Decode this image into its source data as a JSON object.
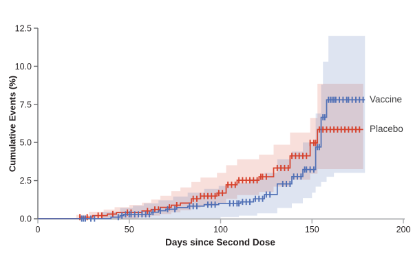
{
  "figure": {
    "background_color": "#ffffff",
    "kind": "Kaplan-Meier cumulative incidence plot"
  },
  "legend": {
    "vaccine_label": "Vaccine",
    "placebo_label": "Placebo"
  },
  "chart_data": {
    "type": "line",
    "subtype": "step-cumulative-incidence-with-confidence-bands",
    "title": "",
    "xlabel": "Days since Second Dose",
    "ylabel": "Cumulative Events (%)",
    "xlim": [
      0,
      200
    ],
    "ylim": [
      0,
      12.5
    ],
    "x_ticks": [
      {
        "v": 0,
        "label": "0"
      },
      {
        "v": 50,
        "label": "50"
      },
      {
        "v": 100,
        "label": "100"
      },
      {
        "v": 150,
        "label": "150"
      },
      {
        "v": 200,
        "label": "200"
      }
    ],
    "y_ticks": [
      {
        "v": 0,
        "label": "0.0"
      },
      {
        "v": 2.5,
        "label": "2.5"
      },
      {
        "v": 5,
        "label": "5.0"
      },
      {
        "v": 7.5,
        "label": "7.5"
      },
      {
        "v": 10,
        "label": "10.0"
      },
      {
        "v": 12.5,
        "label": "12.5"
      }
    ],
    "grid": false,
    "legend_position": "right-of-curve-ends",
    "axis_colors": {
      "x_axis": "#a8aaad",
      "y_axis": "#6d6e71"
    },
    "series": [
      {
        "name": "Placebo",
        "color": "#d6402b",
        "band_fill": "rgba(214,64,43,0.17)",
        "end_day": 178,
        "final_value_pct": 5.85,
        "steps": [
          [
            0,
            0
          ],
          [
            23,
            0.1
          ],
          [
            30,
            0.2
          ],
          [
            38,
            0.3
          ],
          [
            43,
            0.4
          ],
          [
            57,
            0.5
          ],
          [
            62,
            0.6
          ],
          [
            67,
            0.74
          ],
          [
            73,
            0.88
          ],
          [
            78,
            1.02
          ],
          [
            84,
            1.3
          ],
          [
            89,
            1.48
          ],
          [
            98,
            1.68
          ],
          [
            103,
            2.22
          ],
          [
            109,
            2.52
          ],
          [
            121,
            2.75
          ],
          [
            129,
            3.32
          ],
          [
            138,
            4.12
          ],
          [
            149,
            4.97
          ],
          [
            153,
            5.85
          ]
        ],
        "ci_upper": [
          [
            0,
            0
          ],
          [
            21,
            0.25
          ],
          [
            28,
            0.45
          ],
          [
            36,
            0.6
          ],
          [
            42,
            0.75
          ],
          [
            50,
            0.9
          ],
          [
            57,
            1.05
          ],
          [
            62,
            1.25
          ],
          [
            67,
            1.5
          ],
          [
            73,
            1.8
          ],
          [
            78,
            2.05
          ],
          [
            84,
            2.4
          ],
          [
            89,
            2.7
          ],
          [
            98,
            3.0
          ],
          [
            103,
            3.5
          ],
          [
            109,
            3.9
          ],
          [
            121,
            4.2
          ],
          [
            129,
            4.85
          ],
          [
            138,
            5.65
          ],
          [
            149,
            6.6
          ],
          [
            153,
            8.85
          ]
        ],
        "ci_lower": [
          [
            0,
            0
          ],
          [
            55,
            0.1
          ],
          [
            62,
            0.2
          ],
          [
            67,
            0.3
          ],
          [
            73,
            0.42
          ],
          [
            78,
            0.55
          ],
          [
            84,
            0.72
          ],
          [
            89,
            0.85
          ],
          [
            98,
            1.0
          ],
          [
            103,
            1.3
          ],
          [
            109,
            1.55
          ],
          [
            121,
            1.75
          ],
          [
            129,
            2.1
          ],
          [
            138,
            2.55
          ],
          [
            149,
            2.95
          ],
          [
            153,
            3.25
          ]
        ],
        "censor_days": [
          23,
          27,
          33,
          35,
          41,
          49,
          51,
          60,
          64,
          66,
          72,
          76,
          85,
          87,
          89,
          91,
          93,
          95,
          97,
          99,
          101,
          104,
          106,
          108,
          110,
          112,
          114,
          116,
          118,
          120,
          122,
          123,
          125,
          131,
          133,
          135,
          137,
          139,
          141,
          143,
          145,
          147,
          149,
          151,
          152,
          154,
          155,
          156,
          158,
          160,
          162,
          164,
          166,
          168,
          170,
          172,
          174,
          176
        ]
      },
      {
        "name": "Vaccine",
        "color": "#4f6fb5",
        "band_fill": "rgba(79,111,181,0.19)",
        "end_day": 179,
        "final_value_pct": 7.8,
        "steps": [
          [
            0,
            0
          ],
          [
            40,
            0.1
          ],
          [
            45,
            0.2
          ],
          [
            47,
            0.28
          ],
          [
            62,
            0.42
          ],
          [
            66,
            0.52
          ],
          [
            70,
            0.62
          ],
          [
            76,
            0.72
          ],
          [
            82,
            0.82
          ],
          [
            91,
            0.92
          ],
          [
            99,
            1.0
          ],
          [
            111,
            1.1
          ],
          [
            118,
            1.3
          ],
          [
            124,
            1.58
          ],
          [
            131,
            2.28
          ],
          [
            139,
            2.76
          ],
          [
            145,
            3.22
          ],
          [
            152,
            4.7
          ],
          [
            155,
            6.65
          ],
          [
            158,
            7.8
          ]
        ],
        "ci_upper": [
          [
            0,
            0
          ],
          [
            35,
            0.45
          ],
          [
            45,
            0.7
          ],
          [
            52,
            0.85
          ],
          [
            58,
            1.0
          ],
          [
            66,
            1.2
          ],
          [
            74,
            1.45
          ],
          [
            82,
            1.7
          ],
          [
            91,
            1.95
          ],
          [
            99,
            2.15
          ],
          [
            108,
            2.35
          ],
          [
            116,
            2.6
          ],
          [
            124,
            3.0
          ],
          [
            131,
            3.9
          ],
          [
            139,
            4.4
          ],
          [
            145,
            5.0
          ],
          [
            152,
            6.9
          ],
          [
            155,
            8.8
          ],
          [
            156,
            10.3
          ],
          [
            159,
            12.0
          ]
        ],
        "ci_lower": [
          [
            0,
            0
          ],
          [
            100,
            0.1
          ],
          [
            110,
            0.2
          ],
          [
            120,
            0.35
          ],
          [
            131,
            0.7
          ],
          [
            139,
            1.0
          ],
          [
            145,
            1.35
          ],
          [
            150,
            1.7
          ],
          [
            152,
            2.1
          ],
          [
            155,
            2.4
          ],
          [
            158,
            2.75
          ],
          [
            162,
            3.0
          ]
        ],
        "censor_days": [
          24,
          25,
          26,
          29,
          31,
          44,
          46,
          48,
          50,
          51,
          53,
          55,
          57,
          59,
          61,
          63,
          67,
          71,
          75,
          83,
          85,
          87,
          93,
          95,
          97,
          105,
          107,
          109,
          110,
          112,
          114,
          116,
          119,
          121,
          123,
          125,
          127,
          134,
          136,
          138,
          140,
          142,
          144,
          146,
          147,
          149,
          151,
          153,
          154,
          156,
          157,
          159,
          160,
          161,
          162,
          163,
          165,
          167,
          169,
          170,
          172,
          174,
          176,
          178
        ]
      }
    ]
  }
}
